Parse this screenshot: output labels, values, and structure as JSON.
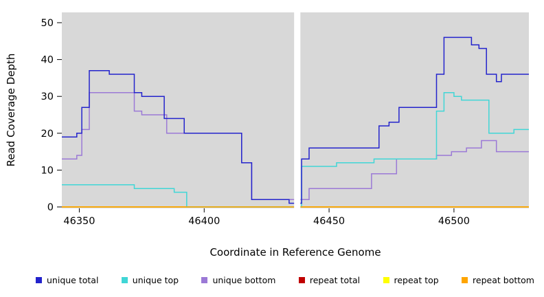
{
  "chart_data": {
    "type": "line",
    "step": true,
    "title": "",
    "xlabel": "Coordinate in Reference Genome",
    "ylabel": "Read Coverage Depth",
    "xlim": [
      46343,
      46530
    ],
    "ylim": [
      0,
      50
    ],
    "xticks": [
      46350,
      46400,
      46450,
      46500
    ],
    "yticks": [
      0,
      10,
      20,
      30,
      40,
      50
    ],
    "plot_bg": "#d8d8d8",
    "gap": {
      "x_start": 46436,
      "x_end": 46438.5
    },
    "legend_position": "bottom",
    "series": [
      {
        "name": "unique total",
        "color": "#2323cc",
        "z": 6,
        "points": [
          [
            46343,
            19
          ],
          [
            46349,
            20
          ],
          [
            46351,
            27
          ],
          [
            46354,
            37
          ],
          [
            46362,
            36
          ],
          [
            46372,
            31
          ],
          [
            46375,
            30
          ],
          [
            46384,
            24
          ],
          [
            46392,
            20
          ],
          [
            46415,
            12
          ],
          [
            46419,
            2
          ],
          [
            46434,
            1
          ],
          [
            46439,
            13
          ],
          [
            46442,
            16
          ],
          [
            46470,
            22
          ],
          [
            46474,
            23
          ],
          [
            46478,
            27
          ],
          [
            46493,
            36
          ],
          [
            46496,
            46
          ],
          [
            46507,
            44
          ],
          [
            46510,
            43
          ],
          [
            46513,
            36
          ],
          [
            46517,
            34
          ],
          [
            46519,
            36
          ]
        ]
      },
      {
        "name": "unique top",
        "color": "#40d6d6",
        "z": 4,
        "points": [
          [
            46343,
            6
          ],
          [
            46372,
            5
          ],
          [
            46388,
            4
          ],
          [
            46393,
            0
          ],
          [
            46439,
            11
          ],
          [
            46453,
            12
          ],
          [
            46468,
            13
          ],
          [
            46493,
            26
          ],
          [
            46496,
            31
          ],
          [
            46500,
            30
          ],
          [
            46503,
            29
          ],
          [
            46514,
            20
          ],
          [
            46524,
            21
          ]
        ]
      },
      {
        "name": "unique bottom",
        "color": "#9b79d6",
        "z": 3,
        "points": [
          [
            46343,
            13
          ],
          [
            46349,
            14
          ],
          [
            46351,
            21
          ],
          [
            46354,
            31
          ],
          [
            46372,
            26
          ],
          [
            46375,
            25
          ],
          [
            46385,
            20
          ],
          [
            46415,
            12
          ],
          [
            46419,
            2
          ],
          [
            46442,
            5
          ],
          [
            46467,
            9
          ],
          [
            46477,
            13
          ],
          [
            46493,
            14
          ],
          [
            46499,
            15
          ],
          [
            46505,
            16
          ],
          [
            46511,
            18
          ],
          [
            46517,
            15
          ]
        ]
      },
      {
        "name": "repeat total",
        "color": "#c00000",
        "z": 1,
        "points": [
          [
            46343,
            0
          ]
        ]
      },
      {
        "name": "repeat top",
        "color": "#ffff00",
        "z": 2,
        "points": [
          [
            46343,
            0
          ]
        ]
      },
      {
        "name": "repeat bottom",
        "color": "#ffa500",
        "z": 5,
        "points": [
          [
            46343,
            0
          ]
        ]
      }
    ]
  }
}
